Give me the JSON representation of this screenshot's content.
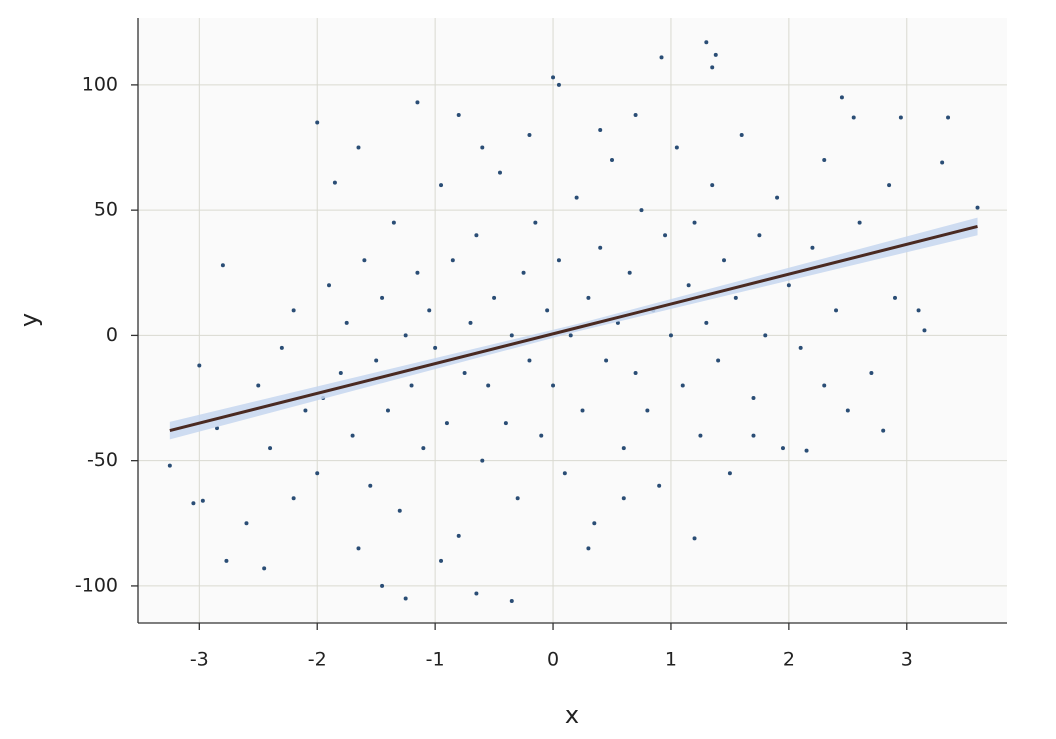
{
  "chart_data": {
    "type": "scatter",
    "x_label": "x",
    "y_label": "y",
    "xlim": [
      -3.52,
      3.85
    ],
    "ylim": [
      -114.8,
      126.7
    ],
    "xticks": [
      -3,
      -2,
      -1,
      0,
      1,
      2,
      3
    ],
    "yticks": [
      -100,
      -50,
      0,
      50,
      100
    ],
    "grid": true,
    "color": "#2a4d75",
    "background": "#fafafa",
    "x": [
      -3.25,
      -3.05,
      -2.97,
      -3.0,
      -2.77,
      -2.8,
      -2.45,
      -1.45,
      -1.25,
      -0.35,
      -0.65,
      0.0,
      0.05,
      0.92,
      1.3,
      1.38,
      1.35,
      2.45,
      2.55,
      2.95,
      3.35,
      3.3,
      3.6,
      3.15,
      3.1,
      2.8,
      2.15,
      1.2,
      -2.0,
      -1.85,
      -1.65,
      -1.15,
      -0.8,
      -2.85,
      -2.5,
      -2.4,
      -2.3,
      -2.2,
      -2.1,
      -2.0,
      -1.9,
      -1.8,
      -1.75,
      -1.7,
      -1.6,
      -1.55,
      -1.5,
      -1.45,
      -1.4,
      -1.35,
      -1.3,
      -1.25,
      -1.2,
      -1.15,
      -1.1,
      -1.05,
      -1.0,
      -0.95,
      -0.9,
      -0.85,
      -0.8,
      -0.75,
      -0.7,
      -0.65,
      -0.6,
      -0.55,
      -0.5,
      -0.45,
      -0.4,
      -0.35,
      -0.3,
      -0.25,
      -0.2,
      -0.15,
      -0.1,
      -0.05,
      0.0,
      0.05,
      0.1,
      0.15,
      0.2,
      0.25,
      0.3,
      0.35,
      0.4,
      0.45,
      0.5,
      0.55,
      0.6,
      0.65,
      0.7,
      0.75,
      0.8,
      0.85,
      0.9,
      0.95,
      1.0,
      1.05,
      1.1,
      1.15,
      1.2,
      1.25,
      1.3,
      1.35,
      1.4,
      1.45,
      1.5,
      1.55,
      1.6,
      1.7,
      1.75,
      1.8,
      1.9,
      1.95,
      2.0,
      2.1,
      2.2,
      2.3,
      2.4,
      2.5,
      2.6,
      2.7,
      2.85,
      2.9,
      -2.6,
      -2.2,
      -1.95,
      -1.65,
      -0.95,
      0.3,
      0.6,
      1.7,
      2.3,
      -0.2,
      0.4,
      0.7,
      -0.6
    ],
    "values": [
      -52,
      -67,
      -66,
      -12,
      -90,
      28,
      -93,
      -100,
      -105,
      -106,
      -103,
      103,
      100,
      111,
      117,
      112,
      107,
      95,
      87,
      87,
      87,
      69,
      51,
      2,
      10,
      -38,
      -46,
      -81,
      85,
      61,
      75,
      93,
      88,
      -37,
      -20,
      -45,
      -5,
      10,
      -30,
      -55,
      20,
      -15,
      5,
      -40,
      30,
      -60,
      -10,
      15,
      -30,
      45,
      -70,
      0,
      -20,
      25,
      -45,
      10,
      -5,
      60,
      -35,
      30,
      -80,
      -15,
      5,
      40,
      -50,
      -20,
      15,
      65,
      -35,
      0,
      -65,
      25,
      -10,
      45,
      -40,
      10,
      -20,
      30,
      -55,
      0,
      55,
      -30,
      15,
      -75,
      35,
      -10,
      70,
      5,
      -45,
      25,
      -15,
      50,
      -30,
      10,
      -60,
      40,
      0,
      75,
      -20,
      20,
      45,
      -40,
      5,
      60,
      -10,
      30,
      -55,
      15,
      80,
      -25,
      40,
      0,
      55,
      -45,
      20,
      -5,
      35,
      70,
      10,
      -30,
      45,
      -15,
      60,
      15,
      -75,
      -65,
      -25,
      -85,
      -90,
      -85,
      -65,
      -40,
      -20,
      80,
      82,
      88,
      75
    ],
    "fit": {
      "color": "#4a2a22",
      "band_color": "#c6d6ee",
      "x": [
        -3.25,
        0.2,
        3.6
      ],
      "values": [
        -38,
        3,
        43.5
      ],
      "lower": [
        -41.5,
        1.5,
        40
      ],
      "upper": [
        -34.5,
        4.5,
        47
      ]
    }
  }
}
